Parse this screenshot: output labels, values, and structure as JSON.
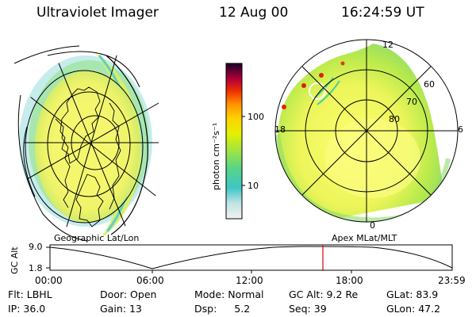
{
  "header": {
    "instrument": "Ultraviolet Imager",
    "date": "12 Aug 00",
    "time": "16:24:59 UT"
  },
  "left_panel": {
    "caption": "Geographic Lat/Lon"
  },
  "right_panel": {
    "caption": "Apex MLat/MLT",
    "mlt_labels": [
      "12",
      "18",
      "6",
      "0"
    ],
    "mlat_labels": [
      "60",
      "70",
      "80"
    ]
  },
  "colorbar": {
    "unit_label": "photon cm⁻²s⁻¹",
    "ticks": [
      "100",
      "10"
    ],
    "colors": [
      "#f2f2f2",
      "#cfe8e8",
      "#7fd7d7",
      "#33c4c4",
      "#3fd29a",
      "#8ee04d",
      "#c8ec2e",
      "#f6f000",
      "#ffcf00",
      "#ff9a00",
      "#ff5a00",
      "#e81e00",
      "#b0003a",
      "#6a0060",
      "#1b0030"
    ]
  },
  "altitude_plot": {
    "ylabel": "GC Alt",
    "yticks": [
      "9.0",
      "1.8"
    ],
    "xticks": [
      "00:00",
      "06:00",
      "12:00",
      "18:00",
      "23:59"
    ],
    "current_time_color": "#e00000"
  },
  "status": {
    "row1": [
      {
        "label": "Flt:",
        "value": "LBHL"
      },
      {
        "label": "Door:",
        "value": "Open"
      },
      {
        "label": "Mode:",
        "value": "Normal"
      },
      {
        "label": "GC Alt:",
        "value": "9.2 Re"
      },
      {
        "label": "GLat:",
        "value": "83.9"
      }
    ],
    "row2": [
      {
        "label": "IP:",
        "value": "36.0"
      },
      {
        "label": "Gain:",
        "value": "13"
      },
      {
        "label": "Dsp:",
        "value": "5.2"
      },
      {
        "label": "Seq:",
        "value": "39"
      },
      {
        "label": "GLon:",
        "value": "47.2"
      }
    ]
  }
}
